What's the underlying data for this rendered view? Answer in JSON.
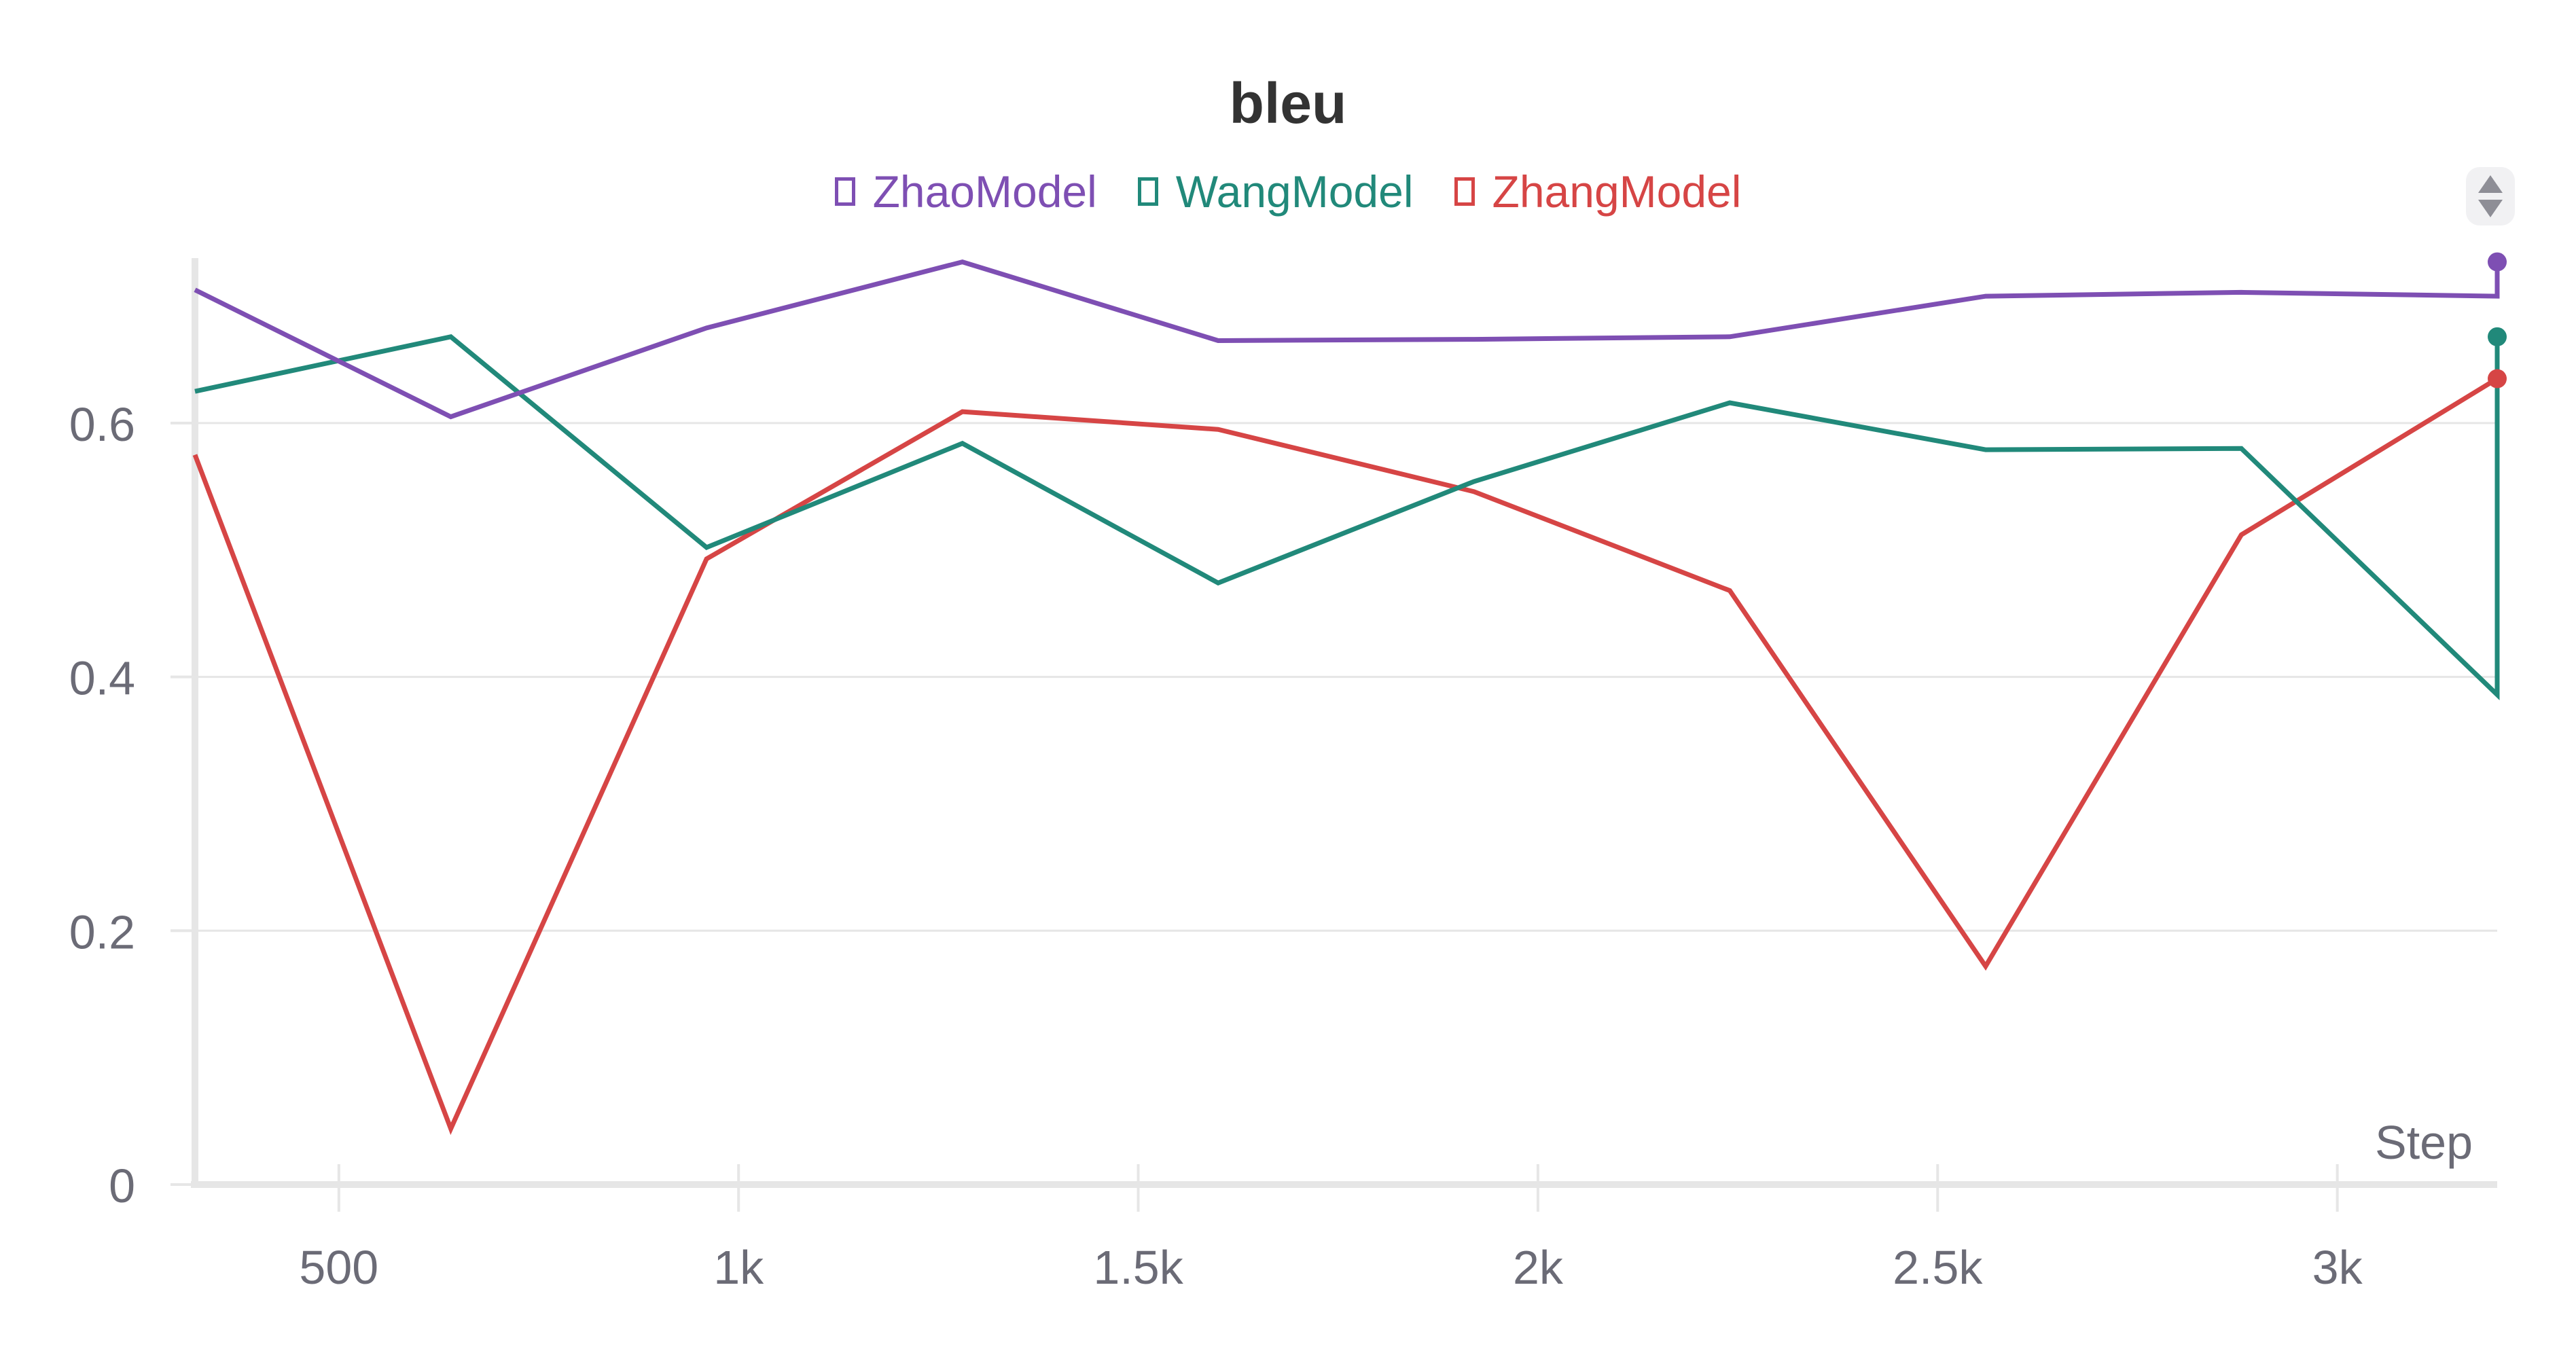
{
  "chart_data": {
    "type": "line",
    "title": "bleu",
    "xlabel": "Step",
    "ylabel": "",
    "xlim": [
      320,
      3200
    ],
    "ylim": [
      0,
      0.73
    ],
    "x_ticks": [
      500,
      1000,
      1500,
      2000,
      2500,
      3000
    ],
    "x_tick_labels": [
      "500",
      "1k",
      "1.5k",
      "2k",
      "2.5k",
      "3k"
    ],
    "y_ticks": [
      0,
      0.2,
      0.4,
      0.6
    ],
    "y_tick_labels": [
      "0",
      "0.2",
      "0.4",
      "0.6"
    ],
    "grid": true,
    "legend_position": "top-center",
    "x": [
      320,
      640,
      960,
      1280,
      1600,
      1920,
      2240,
      2560,
      2880,
      3200
    ],
    "series": [
      {
        "name": "ZhaoModel",
        "color": "#7e4fb3",
        "values": [
          0.705,
          0.605,
          0.675,
          0.727,
          0.665,
          0.666,
          0.668,
          0.7,
          0.703,
          0.7
        ],
        "last_marker": 0.727
      },
      {
        "name": "WangModel",
        "color": "#21897a",
        "values": [
          0.625,
          0.668,
          0.502,
          0.584,
          0.474,
          0.554,
          0.616,
          0.579,
          0.58,
          0.386
        ],
        "last_marker": 0.668
      },
      {
        "name": "ZhangModel",
        "color": "#d64545",
        "values": [
          0.575,
          0.044,
          0.493,
          0.609,
          0.595,
          0.546,
          0.468,
          0.172,
          0.512,
          0.635
        ],
        "last_marker": 0.635
      }
    ]
  }
}
